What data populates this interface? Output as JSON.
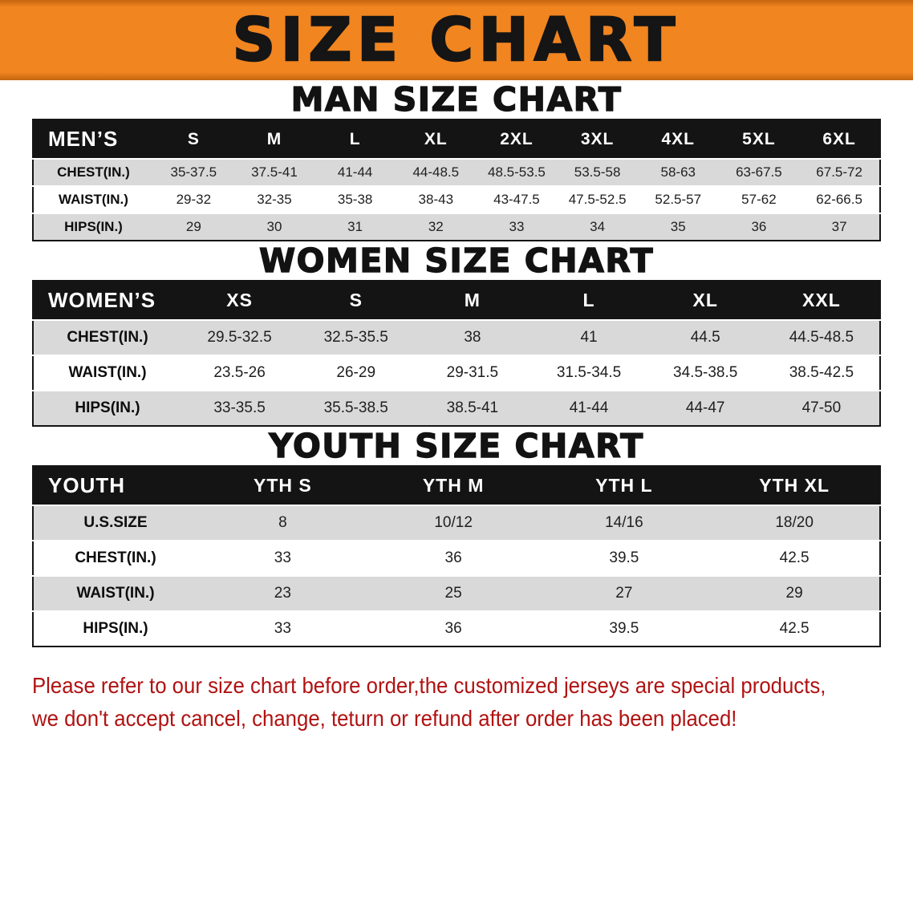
{
  "banner": {
    "title": "SIZE CHART"
  },
  "colors": {
    "banner_orange": "#f18520",
    "banner_edge": "#c4650e",
    "table_header_bg": "#141414",
    "row_stripe_gray": "#d9d9d9",
    "disclaimer_red": "#b01212"
  },
  "sections": {
    "men": {
      "heading": "MAN SIZE CHART",
      "table": {
        "header": [
          "MEN’S",
          "S",
          "M",
          "L",
          "XL",
          "2XL",
          "3XL",
          "4XL",
          "5XL",
          "6XL"
        ],
        "rows": [
          [
            "CHEST(IN.)",
            "35-37.5",
            "37.5-41",
            "41-44",
            "44-48.5",
            "48.5-53.5",
            "53.5-58",
            "58-63",
            "63-67.5",
            "67.5-72"
          ],
          [
            "WAIST(IN.)",
            "29-32",
            "32-35",
            "35-38",
            "38-43",
            "43-47.5",
            "47.5-52.5",
            "52.5-57",
            "57-62",
            "62-66.5"
          ],
          [
            "HIPS(IN.)",
            "29",
            "30",
            "31",
            "32",
            "33",
            "34",
            "35",
            "36",
            "37"
          ]
        ]
      }
    },
    "women": {
      "heading": "WOMEN SIZE CHART",
      "table": {
        "header": [
          "WOMEN’S",
          "XS",
          "S",
          "M",
          "L",
          "XL",
          "XXL"
        ],
        "rows": [
          [
            "CHEST(IN.)",
            "29.5-32.5",
            "32.5-35.5",
            "38",
            "41",
            "44.5",
            "44.5-48.5"
          ],
          [
            "WAIST(IN.)",
            "23.5-26",
            "26-29",
            "29-31.5",
            "31.5-34.5",
            "34.5-38.5",
            "38.5-42.5"
          ],
          [
            "HIPS(IN.)",
            "33-35.5",
            "35.5-38.5",
            "38.5-41",
            "41-44",
            "44-47",
            "47-50"
          ]
        ]
      }
    },
    "youth": {
      "heading": "YOUTH SIZE CHART",
      "table": {
        "header": [
          "YOUTH",
          "YTH S",
          "YTH M",
          "YTH L",
          "YTH XL"
        ],
        "rows": [
          [
            "U.S.SIZE",
            "8",
            "10/12",
            "14/16",
            "18/20"
          ],
          [
            "CHEST(IN.)",
            "33",
            "36",
            "39.5",
            "42.5"
          ],
          [
            "WAIST(IN.)",
            "23",
            "25",
            "27",
            "29"
          ],
          [
            "HIPS(IN.)",
            "33",
            "36",
            "39.5",
            "42.5"
          ]
        ]
      }
    }
  },
  "disclaimer": {
    "line1": "Please refer to our size chart before order,the customized jerseys are special products,",
    "line2": "we don't accept cancel, change, teturn or refund after order has been placed!"
  }
}
